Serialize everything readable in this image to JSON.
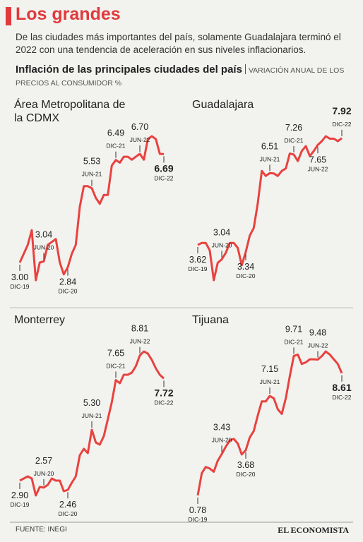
{
  "title": "Los grandes",
  "subtitle": "De las ciudades más importantes del país, solamente Guadalajara terminó el 2022 con una tendencia de aceleración en sus niveles inflacionarios.",
  "heading": "Inflación de las principales ciudades del país",
  "heading_note": "VARIACIÓN ANUAL DE LOS PRECIOS AL CONSUMIDOR %",
  "source": "FUENTE: INEGI",
  "logo": "EL ECONOMISTA",
  "chart_data": [
    {
      "type": "line",
      "title": "Área Metropolitana de la CDMX",
      "color": "#e8423f",
      "x": [
        "DIC-19",
        null,
        null,
        null,
        null,
        null,
        "JUN-20",
        null,
        null,
        null,
        null,
        null,
        "DIC-20",
        null,
        null,
        null,
        null,
        null,
        "JUN-21",
        null,
        null,
        null,
        null,
        null,
        "DIC-21",
        null,
        null,
        null,
        null,
        null,
        "JUN-22",
        null,
        null,
        null,
        null,
        null,
        "DIC-22"
      ],
      "values": [
        3,
        3.3,
        3.6,
        4.1,
        2.4,
        3.0,
        3.04,
        3.6,
        3.7,
        3.8,
        3.0,
        2.6,
        2.84,
        3.3,
        3.6,
        4.9,
        5.6,
        5.6,
        5.53,
        5.2,
        5.0,
        5.3,
        5.3,
        6.3,
        6.49,
        6.4,
        6.6,
        6.6,
        6.5,
        6.6,
        6.7,
        6.5,
        7.2,
        7.3,
        7.2,
        6.7,
        6.69
      ],
      "value_labels": [
        "3.00",
        null,
        null,
        null,
        null,
        null,
        "3.04",
        null,
        null,
        null,
        null,
        null,
        "2.84",
        null,
        null,
        null,
        null,
        null,
        "5.53",
        null,
        null,
        null,
        null,
        null,
        "6.49",
        null,
        null,
        null,
        null,
        null,
        "6.70",
        null,
        null,
        null,
        null,
        null,
        "6.69"
      ]
    },
    {
      "type": "line",
      "title": "Guadalajara",
      "color": "#e8423f",
      "x": [
        "DIC-19",
        null,
        null,
        null,
        null,
        null,
        "JUN-20",
        null,
        null,
        null,
        null,
        null,
        "DIC-20",
        null,
        null,
        null,
        null,
        null,
        "JUN-21",
        null,
        null,
        null,
        null,
        null,
        "DIC-21",
        null,
        null,
        null,
        null,
        null,
        "JUN-22",
        null,
        null,
        null,
        null,
        null,
        "DIC-22"
      ],
      "values": [
        3.62,
        3.7,
        3.7,
        3.4,
        2.2,
        2.9,
        3.04,
        3.3,
        3.7,
        3.7,
        3.5,
        2.8,
        3.34,
        4.0,
        4.3,
        5.3,
        6.6,
        6.4,
        6.51,
        6.5,
        6.4,
        6.6,
        6.7,
        7.3,
        7.26,
        7.0,
        7.4,
        7.6,
        7.2,
        7.4,
        7.65,
        7.8,
        8.0,
        7.9,
        7.9,
        7.8,
        7.92
      ],
      "value_labels": [
        "3.62",
        null,
        null,
        null,
        null,
        null,
        "3.04",
        null,
        null,
        null,
        null,
        null,
        "3.34",
        null,
        null,
        null,
        null,
        null,
        "6.51",
        null,
        null,
        null,
        null,
        null,
        "7.26",
        null,
        null,
        null,
        null,
        null,
        "7.65",
        null,
        null,
        null,
        null,
        null,
        "7.92"
      ]
    },
    {
      "type": "line",
      "title": "Monterrey",
      "color": "#e8423f",
      "x": [
        "DIC-19",
        null,
        null,
        null,
        null,
        null,
        "JUN-20",
        null,
        null,
        null,
        null,
        null,
        "DIC-20",
        null,
        null,
        null,
        null,
        null,
        "JUN-21",
        null,
        null,
        null,
        null,
        null,
        "DIC-21",
        null,
        null,
        null,
        null,
        null,
        "JUN-22",
        null,
        null,
        null,
        null,
        null,
        "DIC-22"
      ],
      "values": [
        2.9,
        3.0,
        3.1,
        3.0,
        2.2,
        2.6,
        2.57,
        2.7,
        3.0,
        2.9,
        2.9,
        2.4,
        2.46,
        2.8,
        3.1,
        4.1,
        4.4,
        4.2,
        5.3,
        4.7,
        4.6,
        5.0,
        5.8,
        6.6,
        7.65,
        7.5,
        7.9,
        7.9,
        8.0,
        8.3,
        8.81,
        9.0,
        8.9,
        8.6,
        8.2,
        7.9,
        7.72
      ],
      "value_labels": [
        "2.90",
        null,
        null,
        null,
        null,
        null,
        "2.57",
        null,
        null,
        null,
        null,
        null,
        "2.46",
        null,
        null,
        null,
        null,
        null,
        "5.30",
        null,
        null,
        null,
        null,
        null,
        "7.65",
        null,
        null,
        null,
        null,
        null,
        "8.81",
        null,
        null,
        null,
        null,
        null,
        "7.72"
      ]
    },
    {
      "type": "line",
      "title": "Tijuana",
      "color": "#e8423f",
      "x": [
        "DIC-19",
        null,
        null,
        null,
        null,
        null,
        "JUN-20",
        null,
        null,
        null,
        null,
        null,
        "DIC-20",
        null,
        null,
        null,
        null,
        null,
        "JUN-21",
        null,
        null,
        null,
        null,
        null,
        "DIC-21",
        null,
        null,
        null,
        null,
        null,
        "JUN-22",
        null,
        null,
        null,
        null,
        null,
        "DIC-22"
      ],
      "values": [
        0.78,
        2.2,
        2.6,
        2.5,
        2.3,
        3.0,
        3.43,
        3.9,
        4.3,
        4.4,
        4.1,
        3.4,
        3.68,
        4.5,
        4.9,
        5.9,
        6.8,
        6.8,
        7.15,
        7.0,
        6.3,
        6.0,
        7.0,
        8.4,
        9.71,
        9.8,
        9.2,
        9.3,
        9.5,
        9.5,
        9.48,
        9.7,
        10.0,
        9.8,
        9.5,
        9.2,
        8.61
      ],
      "value_labels": [
        "0.78",
        null,
        null,
        null,
        null,
        null,
        "3.43",
        null,
        null,
        null,
        null,
        null,
        "3.68",
        null,
        null,
        null,
        null,
        null,
        "7.15",
        null,
        null,
        null,
        null,
        null,
        "9.71",
        null,
        null,
        null,
        null,
        null,
        "9.48",
        null,
        null,
        null,
        null,
        null,
        "8.61"
      ]
    }
  ]
}
